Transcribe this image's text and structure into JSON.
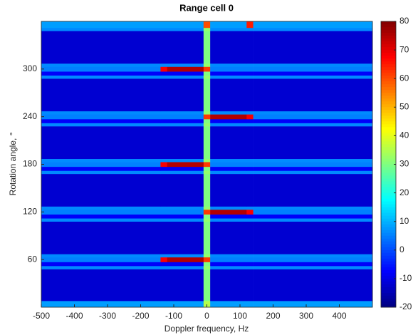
{
  "chart_data": {
    "type": "heatmap",
    "title": "Range cell 0",
    "x_label": "Doppler frequency, Hz",
    "y_label": "Rotation angle, °",
    "x": [
      -500,
      -140,
      -120,
      -10,
      10,
      120,
      140,
      500
    ],
    "y": [
      0,
      8,
      48,
      52,
      57,
      63,
      67,
      108,
      112,
      117,
      123,
      127,
      168,
      172,
      177,
      183,
      187,
      228,
      232,
      237,
      243,
      247,
      288,
      292,
      297,
      303,
      307,
      348,
      352,
      360
    ],
    "z": [
      [
        8,
        8,
        8,
        35,
        8,
        8,
        8
      ],
      [
        -12,
        -12,
        -12,
        30,
        -12,
        -12,
        -12
      ],
      [
        6,
        6,
        6,
        32,
        6,
        6,
        6
      ],
      [
        -8,
        -8,
        -8,
        30,
        -8,
        -8,
        -8
      ],
      [
        5,
        68,
        75,
        62,
        5,
        5,
        5
      ],
      [
        6,
        6,
        6,
        32,
        6,
        6,
        6
      ],
      [
        -12,
        -12,
        -12,
        30,
        -12,
        -12,
        -12
      ],
      [
        6,
        6,
        6,
        32,
        6,
        6,
        6
      ],
      [
        -8,
        -8,
        -8,
        30,
        -8,
        -8,
        -8
      ],
      [
        5,
        5,
        5,
        62,
        75,
        68,
        5
      ],
      [
        6,
        6,
        6,
        32,
        6,
        6,
        6
      ],
      [
        -12,
        -12,
        -12,
        30,
        -12,
        -12,
        -12
      ],
      [
        6,
        6,
        6,
        32,
        6,
        6,
        6
      ],
      [
        -8,
        -8,
        -8,
        30,
        -8,
        -8,
        -8
      ],
      [
        5,
        68,
        75,
        62,
        5,
        5,
        5
      ],
      [
        6,
        6,
        6,
        32,
        6,
        6,
        6
      ],
      [
        -12,
        -12,
        -12,
        30,
        -12,
        -12,
        -12
      ],
      [
        6,
        6,
        6,
        32,
        6,
        6,
        6
      ],
      [
        -8,
        -8,
        -8,
        30,
        -8,
        -8,
        -8
      ],
      [
        5,
        5,
        5,
        62,
        75,
        68,
        5
      ],
      [
        6,
        6,
        6,
        32,
        6,
        6,
        6
      ],
      [
        -12,
        -12,
        -12,
        30,
        -12,
        -12,
        -12
      ],
      [
        6,
        6,
        6,
        32,
        6,
        6,
        6
      ],
      [
        -8,
        -8,
        -8,
        30,
        -8,
        -8,
        -8
      ],
      [
        5,
        68,
        75,
        62,
        5,
        5,
        5
      ],
      [
        6,
        6,
        6,
        32,
        6,
        6,
        6
      ],
      [
        -12,
        -12,
        -12,
        30,
        -12,
        -12,
        -12
      ],
      [
        6,
        6,
        6,
        32,
        6,
        6,
        6
      ],
      [
        8,
        8,
        8,
        60,
        8,
        65,
        8
      ]
    ],
    "colormap": "jet",
    "xlim": [
      -500,
      500
    ],
    "ylim": [
      0,
      360
    ],
    "xticks": [
      -500,
      -400,
      -300,
      -200,
      -100,
      0,
      100,
      200,
      300,
      400
    ],
    "yticks": [
      60,
      120,
      180,
      240,
      300
    ],
    "clim": [
      -20,
      80
    ],
    "cticks": [
      -20,
      -10,
      0,
      10,
      20,
      30,
      40,
      50,
      60,
      70,
      80
    ]
  }
}
